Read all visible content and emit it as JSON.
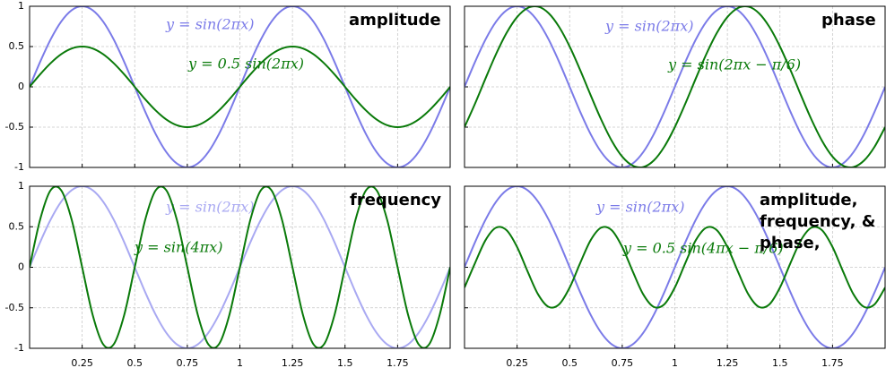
{
  "chart_data": [
    {
      "type": "line",
      "title": "amplitude",
      "x": [
        0,
        0.05,
        0.1,
        0.15,
        0.2,
        0.25,
        0.3,
        0.35,
        0.4,
        0.45,
        0.5,
        0.55,
        0.6,
        0.65,
        0.7,
        0.75,
        0.8,
        0.85,
        0.9,
        0.95,
        1,
        1.05,
        1.1,
        1.15,
        1.2,
        1.25,
        1.3,
        1.35,
        1.4,
        1.45,
        1.5,
        1.55,
        1.6,
        1.65,
        1.7,
        1.75,
        1.8,
        1.85,
        1.9,
        1.95,
        2
      ],
      "series": [
        {
          "name": "y = sin(2πx)",
          "color": "#7b7be8",
          "values": [
            0,
            0.309,
            0.588,
            0.809,
            0.951,
            1,
            0.951,
            0.809,
            0.588,
            0.309,
            0,
            -0.309,
            -0.588,
            -0.809,
            -0.951,
            -1,
            -0.951,
            -0.809,
            -0.588,
            -0.309,
            0,
            0.309,
            0.588,
            0.809,
            0.951,
            1,
            0.951,
            0.809,
            0.588,
            0.309,
            0,
            -0.309,
            -0.588,
            -0.809,
            -0.951,
            -1,
            -0.951,
            -0.809,
            -0.588,
            -0.309,
            0
          ]
        },
        {
          "name": "y = 0.5 sin(2πx)",
          "color": "#0a7a0a",
          "values": [
            0,
            0.155,
            0.294,
            0.405,
            0.476,
            0.5,
            0.476,
            0.405,
            0.294,
            0.155,
            0,
            -0.155,
            -0.294,
            -0.405,
            -0.476,
            -0.5,
            -0.476,
            -0.405,
            -0.294,
            -0.155,
            0,
            0.155,
            0.294,
            0.405,
            0.476,
            0.5,
            0.476,
            0.405,
            0.294,
            0.155,
            0,
            -0.155,
            -0.294,
            -0.405,
            -0.476,
            -0.5,
            -0.476,
            -0.405,
            -0.294,
            -0.155,
            0
          ]
        }
      ],
      "xlim": [
        0,
        2
      ],
      "ylim": [
        -1,
        1
      ],
      "xticks": [
        0.25,
        0.5,
        0.75,
        1,
        1.25,
        1.5,
        1.75
      ],
      "yticks": [
        -1,
        -0.5,
        0,
        0.5,
        1
      ],
      "grid": true
    },
    {
      "type": "line",
      "title": "phase",
      "x": [
        0,
        0.05,
        0.1,
        0.15,
        0.2,
        0.25,
        0.3,
        0.35,
        0.4,
        0.45,
        0.5,
        0.55,
        0.6,
        0.65,
        0.7,
        0.75,
        0.8,
        0.85,
        0.9,
        0.95,
        1,
        1.05,
        1.1,
        1.15,
        1.2,
        1.25,
        1.3,
        1.35,
        1.4,
        1.45,
        1.5,
        1.55,
        1.6,
        1.65,
        1.7,
        1.75,
        1.8,
        1.85,
        1.9,
        1.95,
        2
      ],
      "series": [
        {
          "name": "y = sin(2πx)",
          "color": "#7b7be8",
          "values": [
            0,
            0.309,
            0.588,
            0.809,
            0.951,
            1,
            0.951,
            0.809,
            0.588,
            0.309,
            0,
            -0.309,
            -0.588,
            -0.809,
            -0.951,
            -1,
            -0.951,
            -0.809,
            -0.588,
            -0.309,
            0,
            0.309,
            0.588,
            0.809,
            0.951,
            1,
            0.951,
            0.809,
            0.588,
            0.309,
            0,
            -0.309,
            -0.588,
            -0.809,
            -0.951,
            -1,
            -0.951,
            -0.809,
            -0.588,
            -0.309,
            0
          ]
        },
        {
          "name": "y = sin(2πx − π/6)",
          "color": "#0a7a0a",
          "values": [
            -0.5,
            -0.208,
            0.105,
            0.407,
            0.669,
            0.866,
            0.978,
            0.995,
            0.914,
            0.743,
            0.5,
            0.208,
            -0.105,
            -0.407,
            -0.669,
            -0.866,
            -0.978,
            -0.995,
            -0.914,
            -0.743,
            -0.5,
            -0.208,
            0.105,
            0.407,
            0.669,
            0.866,
            0.978,
            0.995,
            0.914,
            0.743,
            0.5,
            0.208,
            -0.105,
            -0.407,
            -0.669,
            -0.866,
            -0.978,
            -0.995,
            -0.914,
            -0.743,
            -0.5
          ]
        }
      ],
      "xlim": [
        0,
        2
      ],
      "ylim": [
        -1,
        1
      ],
      "xticks": [
        0.25,
        0.5,
        0.75,
        1,
        1.25,
        1.5,
        1.75
      ],
      "yticks": [
        -1,
        -0.5,
        0,
        0.5,
        1
      ],
      "grid": true
    },
    {
      "type": "line",
      "title": "frequency",
      "x": [
        0,
        0.05,
        0.1,
        0.15,
        0.2,
        0.25,
        0.3,
        0.35,
        0.4,
        0.45,
        0.5,
        0.55,
        0.6,
        0.65,
        0.7,
        0.75,
        0.8,
        0.85,
        0.9,
        0.95,
        1,
        1.05,
        1.1,
        1.15,
        1.2,
        1.25,
        1.3,
        1.35,
        1.4,
        1.45,
        1.5,
        1.55,
        1.6,
        1.65,
        1.7,
        1.75,
        1.8,
        1.85,
        1.9,
        1.95,
        2
      ],
      "series": [
        {
          "name": "y = sin(2πx)",
          "color": "#a9a9f2",
          "values": [
            0,
            0.309,
            0.588,
            0.809,
            0.951,
            1,
            0.951,
            0.809,
            0.588,
            0.309,
            0,
            -0.309,
            -0.588,
            -0.809,
            -0.951,
            -1,
            -0.951,
            -0.809,
            -0.588,
            -0.309,
            0,
            0.309,
            0.588,
            0.809,
            0.951,
            1,
            0.951,
            0.809,
            0.588,
            0.309,
            0,
            -0.309,
            -0.588,
            -0.809,
            -0.951,
            -1,
            -0.951,
            -0.809,
            -0.588,
            -0.309,
            0
          ]
        },
        {
          "name": "y = sin(4πx)",
          "color": "#0a7a0a",
          "values": [
            0,
            0.588,
            0.951,
            0.951,
            0.588,
            0,
            -0.588,
            -0.951,
            -0.951,
            -0.588,
            0,
            0.588,
            0.951,
            0.951,
            0.588,
            0,
            -0.588,
            -0.951,
            -0.951,
            -0.588,
            0,
            0.588,
            0.951,
            0.951,
            0.588,
            0,
            -0.588,
            -0.951,
            -0.951,
            -0.588,
            0,
            0.588,
            0.951,
            0.951,
            0.588,
            0,
            -0.588,
            -0.951,
            -0.951,
            -0.588,
            0
          ]
        }
      ],
      "xlim": [
        0,
        2
      ],
      "ylim": [
        -1,
        1
      ],
      "xticks": [
        0.25,
        0.5,
        0.75,
        1,
        1.25,
        1.5,
        1.75
      ],
      "yticks": [
        -1,
        -0.5,
        0,
        0.5,
        1
      ],
      "grid": true
    },
    {
      "type": "line",
      "title": "amplitude, frequency, & phase,",
      "x": [
        0,
        0.05,
        0.1,
        0.15,
        0.2,
        0.25,
        0.3,
        0.35,
        0.4,
        0.45,
        0.5,
        0.55,
        0.6,
        0.65,
        0.7,
        0.75,
        0.8,
        0.85,
        0.9,
        0.95,
        1,
        1.05,
        1.1,
        1.15,
        1.2,
        1.25,
        1.3,
        1.35,
        1.4,
        1.45,
        1.5,
        1.55,
        1.6,
        1.65,
        1.7,
        1.75,
        1.8,
        1.85,
        1.9,
        1.95,
        2
      ],
      "series": [
        {
          "name": "y = sin(2πx)",
          "color": "#7b7be8",
          "values": [
            0,
            0.309,
            0.588,
            0.809,
            0.951,
            1,
            0.951,
            0.809,
            0.588,
            0.309,
            0,
            -0.309,
            -0.588,
            -0.809,
            -0.951,
            -1,
            -0.951,
            -0.809,
            -0.588,
            -0.309,
            0,
            0.309,
            0.588,
            0.809,
            0.951,
            1,
            0.951,
            0.809,
            0.588,
            0.309,
            0,
            -0.309,
            -0.588,
            -0.809,
            -0.951,
            -1,
            -0.951,
            -0.809,
            -0.588,
            -0.309,
            0
          ]
        },
        {
          "name": "y = 0.5 sin(4πx − π/6)",
          "color": "#0a7a0a",
          "values": [
            -0.25,
            0.052,
            0.335,
            0.489,
            0.457,
            0.25,
            -0.052,
            -0.335,
            -0.489,
            -0.457,
            -0.25,
            0.052,
            0.335,
            0.489,
            0.457,
            0.25,
            -0.052,
            -0.335,
            -0.489,
            -0.457,
            -0.25,
            0.052,
            0.335,
            0.489,
            0.457,
            0.25,
            -0.052,
            -0.335,
            -0.489,
            -0.457,
            -0.25,
            0.052,
            0.335,
            0.489,
            0.457,
            0.25,
            -0.052,
            -0.335,
            -0.489,
            -0.457,
            -0.25
          ]
        }
      ],
      "xlim": [
        0,
        2
      ],
      "ylim": [
        -1,
        1
      ],
      "xticks": [
        0.25,
        0.5,
        0.75,
        1,
        1.25,
        1.5,
        1.75
      ],
      "yticks": [
        -1,
        -0.5,
        0,
        0.5,
        1
      ],
      "grid": true
    }
  ]
}
